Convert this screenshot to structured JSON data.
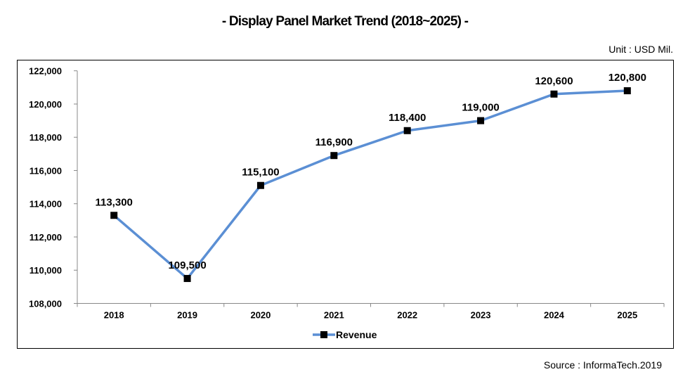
{
  "chart_data": {
    "type": "line",
    "title": "-  Display Panel Market Trend (2018~2025) -",
    "unit_label": "Unit : USD  Mil.",
    "source": "Source : InformaTech.2019",
    "categories": [
      "2018",
      "2019",
      "2020",
      "2021",
      "2022",
      "2023",
      "2024",
      "2025"
    ],
    "series": [
      {
        "name": "Revenue",
        "values": [
          113300,
          109500,
          115100,
          116900,
          118400,
          119000,
          120600,
          120800
        ],
        "color": "#5b8fd4",
        "marker": "square",
        "marker_color": "#000000"
      }
    ],
    "data_labels": [
      "113,300",
      "109,500",
      "115,100",
      "116,900",
      "118,400",
      "119,000",
      "120,600",
      "120,800"
    ],
    "ylim": [
      108000,
      122000
    ],
    "yticks": [
      108000,
      110000,
      112000,
      114000,
      116000,
      118000,
      120000,
      122000
    ],
    "ytick_labels": [
      "108,000",
      "110,000",
      "112,000",
      "114,000",
      "116,000",
      "118,000",
      "120,000",
      "122,000"
    ],
    "grid": false,
    "legend_position": "bottom",
    "xlabel": "",
    "ylabel": ""
  }
}
